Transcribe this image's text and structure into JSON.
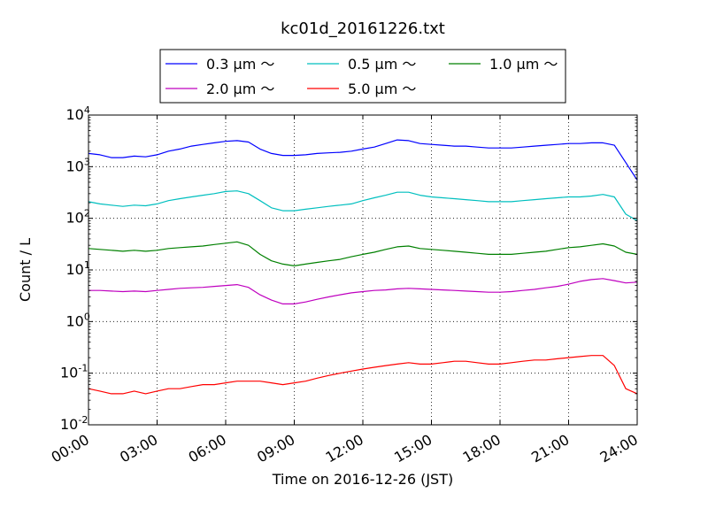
{
  "chart_data": {
    "type": "line",
    "title": "kc01d_20161226.txt",
    "xlabel": "Time on 2016-12-26 (JST)",
    "ylabel": "Count / L",
    "yscale": "log",
    "ylim": [
      0.01,
      10000
    ],
    "xlim": [
      "00:00",
      "24:00"
    ],
    "x_ticks": [
      "00:00",
      "03:00",
      "06:00",
      "09:00",
      "12:00",
      "15:00",
      "18:00",
      "21:00",
      "24:00"
    ],
    "y_ticks": [
      {
        "base": "10",
        "exp": "-2"
      },
      {
        "base": "10",
        "exp": "-1"
      },
      {
        "base": "10",
        "exp": "0"
      },
      {
        "base": "10",
        "exp": "1"
      },
      {
        "base": "10",
        "exp": "2"
      },
      {
        "base": "10",
        "exp": "3"
      },
      {
        "base": "10",
        "exp": "4"
      }
    ],
    "grid": true,
    "legend_position": "top-center",
    "x_hours": [
      0,
      0.5,
      1,
      1.5,
      2,
      2.5,
      3,
      3.5,
      4,
      4.5,
      5,
      5.5,
      6,
      6.5,
      7,
      7.5,
      8,
      8.5,
      9,
      9.5,
      10,
      10.5,
      11,
      11.5,
      12,
      12.5,
      13,
      13.5,
      14,
      14.5,
      15,
      15.5,
      16,
      16.5,
      17,
      17.5,
      18,
      18.5,
      19,
      19.5,
      20,
      20.5,
      21,
      21.5,
      22,
      22.5,
      23,
      23.5,
      24
    ],
    "series": [
      {
        "name": "0.3 μm ～",
        "color": "#0000ff",
        "values": [
          1800,
          1700,
          1500,
          1500,
          1600,
          1550,
          1700,
          2000,
          2200,
          2500,
          2700,
          2900,
          3100,
          3200,
          3000,
          2200,
          1800,
          1650,
          1650,
          1700,
          1800,
          1850,
          1900,
          2000,
          2200,
          2400,
          2800,
          3300,
          3200,
          2800,
          2700,
          2600,
          2500,
          2500,
          2400,
          2300,
          2300,
          2300,
          2400,
          2500,
          2600,
          2700,
          2800,
          2800,
          2900,
          2900,
          2600,
          1200,
          550
        ]
      },
      {
        "name": "0.5 μm ～",
        "color": "#00bfbf",
        "values": [
          210,
          190,
          180,
          170,
          180,
          175,
          190,
          220,
          240,
          260,
          280,
          300,
          330,
          340,
          300,
          220,
          160,
          140,
          140,
          150,
          160,
          170,
          180,
          190,
          220,
          250,
          280,
          320,
          320,
          280,
          260,
          250,
          240,
          230,
          220,
          210,
          210,
          210,
          220,
          230,
          240,
          250,
          260,
          260,
          270,
          290,
          260,
          120,
          90
        ]
      },
      {
        "name": "1.0 μm ～",
        "color": "#008000",
        "values": [
          26,
          25,
          24,
          23,
          24,
          23,
          24,
          26,
          27,
          28,
          29,
          31,
          33,
          35,
          30,
          20,
          15,
          13,
          12,
          13,
          14,
          15,
          16,
          18,
          20,
          22,
          25,
          28,
          29,
          26,
          25,
          24,
          23,
          22,
          21,
          20,
          20,
          20,
          21,
          22,
          23,
          25,
          27,
          28,
          30,
          32,
          29,
          22,
          20
        ]
      },
      {
        "name": "2.0 μm ～",
        "color": "#bf00bf",
        "values": [
          4.0,
          4.0,
          3.9,
          3.8,
          3.9,
          3.8,
          4.0,
          4.2,
          4.4,
          4.5,
          4.6,
          4.8,
          5.0,
          5.2,
          4.6,
          3.3,
          2.6,
          2.2,
          2.2,
          2.4,
          2.7,
          3.0,
          3.3,
          3.6,
          3.8,
          4.0,
          4.1,
          4.3,
          4.4,
          4.3,
          4.2,
          4.1,
          4.0,
          3.9,
          3.8,
          3.7,
          3.7,
          3.8,
          4.0,
          4.2,
          4.5,
          4.8,
          5.3,
          6.0,
          6.5,
          6.8,
          6.2,
          5.6,
          5.8
        ]
      },
      {
        "name": "5.0 μm ～",
        "color": "#ff0000",
        "values": [
          0.05,
          0.045,
          0.04,
          0.04,
          0.045,
          0.04,
          0.045,
          0.05,
          0.05,
          0.055,
          0.06,
          0.06,
          0.065,
          0.07,
          0.07,
          0.07,
          0.065,
          0.06,
          0.065,
          0.07,
          0.08,
          0.09,
          0.1,
          0.11,
          0.12,
          0.13,
          0.14,
          0.15,
          0.16,
          0.15,
          0.15,
          0.16,
          0.17,
          0.17,
          0.16,
          0.15,
          0.15,
          0.16,
          0.17,
          0.18,
          0.18,
          0.19,
          0.2,
          0.21,
          0.22,
          0.22,
          0.14,
          0.05,
          0.04
        ]
      }
    ]
  }
}
